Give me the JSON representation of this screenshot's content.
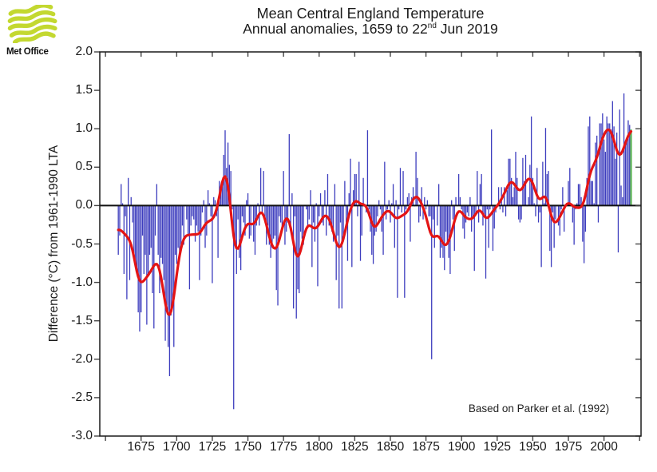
{
  "logo": {
    "brand": "Met Office",
    "color": "#c3d830"
  },
  "title": {
    "line1": "Mean Central England Temperature",
    "line2_prefix": "Annual anomalies, 1659 to 22",
    "line2_sup": "nd",
    "line2_suffix": " Jun 2019"
  },
  "y_axis": {
    "label": "Difference (°C) from 1961-1990 LTA",
    "tick_values": [
      2.0,
      1.5,
      1.0,
      0.5,
      0.0,
      -0.5,
      -1.0,
      -1.5,
      -2.0,
      -2.5,
      -3.0
    ],
    "ticks": [
      "2.0",
      "1.5",
      "1.0",
      "0.5",
      "0.0",
      "-0.5",
      "-1.0",
      "-1.5",
      "-2.0",
      "-2.5",
      "-3.0"
    ]
  },
  "x_axis": {
    "tick_years": [
      1650,
      1675,
      1700,
      1725,
      1750,
      1775,
      1800,
      1825,
      1850,
      1875,
      1900,
      1925,
      1950,
      1975,
      2000,
      2025
    ],
    "tick_labels": [
      "",
      "1675",
      "1700",
      "1725",
      "1750",
      "1775",
      "1800",
      "1825",
      "1850",
      "1875",
      "1900",
      "1925",
      "1950",
      "1975",
      "2000",
      ""
    ]
  },
  "annotation": "Based on Parker et al. (1992)",
  "chart_data": {
    "type": "bar",
    "series_label": "Annual mean temperature anomaly",
    "unit": "°C vs 1961-1990 LTA",
    "start_year": 1659,
    "end_year": 2019,
    "ylim": [
      -3.0,
      2.0
    ],
    "xlim_plot": [
      1646,
      2026
    ],
    "grid": false,
    "bar_color": "#3d3dbe",
    "highlight_last": {
      "year": 2019,
      "color": "#5cb453",
      "note": "partial year to 22 Jun"
    },
    "smoothed_line": {
      "color": "#e41414",
      "method": "gaussian",
      "sigma_years": 3.2,
      "half_window_years": 10
    },
    "values": [
      -0.64,
      -0.39,
      0.28,
      0.03,
      -0.89,
      -0.14,
      -1.22,
      0.36,
      -0.97,
      0.11,
      -0.22,
      -0.68,
      -0.72,
      -0.84,
      -1.39,
      -1.64,
      -1.39,
      -0.39,
      -0.89,
      -0.64,
      -1.55,
      -0.89,
      -0.64,
      -0.55,
      -1.14,
      -1.6,
      -0.39,
      0.28,
      -0.64,
      -1.14,
      -0.68,
      -0.76,
      -0.97,
      -1.76,
      -1.3,
      -1.84,
      -2.22,
      -1.43,
      -1.26,
      -1.84,
      -0.64,
      -0.76,
      -0.55,
      -0.64,
      -0.51,
      -0.26,
      -0.51,
      -0.01,
      -0.18,
      -0.39,
      -1.09,
      -0.26,
      -0.14,
      -0.18,
      -0.47,
      -0.26,
      -0.34,
      -0.97,
      -0.39,
      -0.09,
      0.07,
      -0.55,
      -0.39,
      0.2,
      0.03,
      -0.14,
      -1.01,
      0.11,
      0.07,
      -0.14,
      -0.68,
      0.32,
      0.24,
      0.28,
      0.66,
      0.98,
      0.49,
      0.82,
      0.53,
      0.45,
      -0.05,
      -2.65,
      -0.51,
      -0.89,
      -0.18,
      -0.68,
      -0.84,
      -0.14,
      -0.22,
      -0.39,
      0.07,
      0.16,
      -0.43,
      -0.39,
      -0.01,
      -0.47,
      -0.64,
      -0.26,
      0.03,
      -0.26,
      0.49,
      -0.09,
      0.45,
      -0.22,
      -0.51,
      -0.26,
      -0.51,
      -0.68,
      -0.55,
      -0.43,
      -0.39,
      -1.1,
      -1.3,
      -0.14,
      -0.22,
      -0.34,
      0.45,
      -0.51,
      -0.34,
      -0.22,
      0.93,
      -0.3,
      0.16,
      -1.34,
      -0.14,
      -1.47,
      -1.09,
      -1.14,
      -0.34,
      -0.43,
      -0.51,
      -0.01,
      -0.05,
      -0.26,
      -0.18,
      0.2,
      -0.8,
      -0.22,
      -0.47,
      0.03,
      -1.05,
      -0.14,
      0.16,
      -0.22,
      -0.26,
      0.2,
      -0.39,
      0.41,
      -0.26,
      -0.22,
      -0.34,
      -0.47,
      0.28,
      -0.97,
      -0.39,
      -1.34,
      -0.22,
      -1.34,
      -0.47,
      0.32,
      -0.22,
      -0.72,
      0.16,
      0.61,
      -0.8,
      0.2,
      0.41,
      0.41,
      -0.14,
      0.57,
      -0.72,
      -0.39,
      0.36,
      -0.01,
      -0.09,
      0.98,
      -0.05,
      -0.34,
      -0.64,
      -0.76,
      -0.39,
      -0.34,
      -0.14,
      0.07,
      -0.05,
      -0.34,
      -0.64,
      0.57,
      -0.18,
      -0.05,
      0.07,
      -0.22,
      0.03,
      0.28,
      -0.55,
      0.07,
      -1.2,
      -0.05,
      0.49,
      -0.09,
      0.45,
      -1.2,
      -0.05,
      0.11,
      0.16,
      -0.47,
      0.11,
      0.24,
      -0.01,
      0.7,
      0.36,
      -0.22,
      -0.14,
      0.24,
      -0.18,
      0.11,
      -0.05,
      0.07,
      -0.14,
      -0.14,
      -2.0,
      -0.18,
      -0.55,
      -0.01,
      -0.26,
      0.28,
      -0.68,
      -0.55,
      -0.68,
      -0.84,
      -0.34,
      -0.51,
      -0.68,
      -0.89,
      0.07,
      -0.18,
      -0.59,
      0.11,
      -0.01,
      0.41,
      0.11,
      -0.05,
      -0.3,
      -0.43,
      -0.22,
      -0.09,
      -0.14,
      0.11,
      -0.34,
      -0.14,
      -0.85,
      -0.09,
      0.45,
      -0.22,
      0.28,
      0.41,
      -0.26,
      -0.14,
      -0.95,
      -0.05,
      -0.55,
      -0.05,
      0.99,
      -0.59,
      -0.3,
      -0.09,
      -0.01,
      0.24,
      -0.05,
      0.24,
      -0.09,
      0.24,
      -0.14,
      0.2,
      0.61,
      0.61,
      0.36,
      0.11,
      0.24,
      0.7,
      0.36,
      -0.18,
      -0.22,
      -0.18,
      0.62,
      0.32,
      0.66,
      -0.01,
      0.11,
      0.53,
      1.16,
      0.36,
      0.03,
      -0.14,
      0.49,
      -0.22,
      -0.09,
      -0.8,
      0.57,
      0.03,
      1.01,
      0.41,
      0.45,
      -0.59,
      -0.8,
      -0.09,
      -0.55,
      -0.18,
      -0.01,
      -0.26,
      -0.39,
      -0.05,
      0.24,
      -0.34,
      -0.01,
      0.03,
      0.32,
      0.49,
      -0.01,
      -0.22,
      -0.51,
      -0.05,
      0.03,
      0.28,
      0.28,
      0.11,
      -0.47,
      -0.75,
      -0.34,
      0.36,
      1.03,
      1.16,
      0.32,
      0.32,
      0.03,
      0.82,
      0.91,
      -0.22,
      1.07,
      1.07,
      1.2,
      0.86,
      0.7,
      1.16,
      1.07,
      1.07,
      0.99,
      1.36,
      1.03,
      0.61,
      0.95,
      -0.61,
      1.25,
      0.26,
      0.11,
      1.46,
      0.8,
      0.86,
      1.11,
      1.05,
      0.99
    ]
  }
}
